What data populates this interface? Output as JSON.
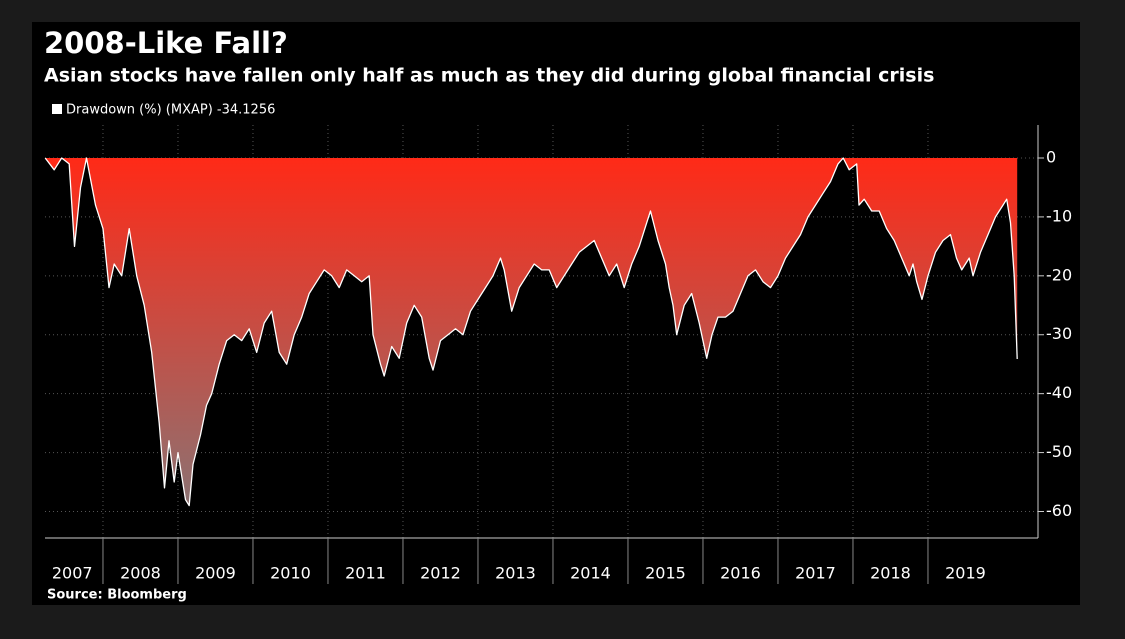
{
  "chart_data": {
    "type": "area",
    "title": "2008-Like Fall?",
    "subtitle": "Asian stocks have fallen only half as much as they did during global financial crisis",
    "source": "Source: Bloomberg",
    "series": [
      {
        "name": "Drawdown (%) (MXAP) -34.1256",
        "color": "#ffffff",
        "fill_gradient": [
          "#ff2a17",
          "#8c7272"
        ],
        "x": [
          2007.23,
          2007.35,
          2007.45,
          2007.55,
          2007.62,
          2007.7,
          2007.78,
          2007.9,
          2008.0,
          2008.08,
          2008.15,
          2008.25,
          2008.35,
          2008.45,
          2008.55,
          2008.65,
          2008.75,
          2008.82,
          2008.88,
          2008.95,
          2009.0,
          2009.1,
          2009.15,
          2009.2,
          2009.3,
          2009.38,
          2009.45,
          2009.55,
          2009.65,
          2009.75,
          2009.85,
          2009.95,
          2010.05,
          2010.15,
          2010.25,
          2010.35,
          2010.45,
          2010.55,
          2010.65,
          2010.75,
          2010.85,
          2010.95,
          2011.05,
          2011.15,
          2011.25,
          2011.35,
          2011.45,
          2011.55,
          2011.6,
          2011.7,
          2011.75,
          2011.85,
          2011.95,
          2012.05,
          2012.15,
          2012.25,
          2012.35,
          2012.4,
          2012.5,
          2012.6,
          2012.7,
          2012.8,
          2012.9,
          2013.0,
          2013.1,
          2013.2,
          2013.3,
          2013.35,
          2013.45,
          2013.55,
          2013.65,
          2013.75,
          2013.85,
          2013.95,
          2014.05,
          2014.15,
          2014.25,
          2014.35,
          2014.45,
          2014.55,
          2014.65,
          2014.75,
          2014.85,
          2014.95,
          2015.05,
          2015.15,
          2015.25,
          2015.3,
          2015.4,
          2015.5,
          2015.55,
          2015.6,
          2015.65,
          2015.75,
          2015.85,
          2015.95,
          2016.05,
          2016.12,
          2016.2,
          2016.3,
          2016.4,
          2016.5,
          2016.6,
          2016.7,
          2016.8,
          2016.9,
          2017.0,
          2017.1,
          2017.2,
          2017.3,
          2017.4,
          2017.5,
          2017.6,
          2017.7,
          2017.8,
          2017.87,
          2017.95,
          2018.05,
          2018.08,
          2018.15,
          2018.25,
          2018.35,
          2018.45,
          2018.55,
          2018.65,
          2018.75,
          2018.8,
          2018.85,
          2018.92,
          2019.0,
          2019.1,
          2019.2,
          2019.3,
          2019.38,
          2019.45,
          2019.55,
          2019.6,
          2019.7,
          2019.8,
          2019.9,
          2020.0,
          2020.05,
          2020.1,
          2020.15,
          2020.19
        ],
        "values": [
          0,
          -2,
          0,
          -1,
          -15,
          -5,
          0,
          -8,
          -12,
          -22,
          -18,
          -20,
          -12,
          -20,
          -25,
          -33,
          -45,
          -56,
          -48,
          -55,
          -50,
          -58,
          -59,
          -52,
          -47,
          -42,
          -40,
          -35,
          -31,
          -30,
          -31,
          -29,
          -33,
          -28,
          -26,
          -33,
          -35,
          -30,
          -27,
          -23,
          -21,
          -19,
          -20,
          -22,
          -19,
          -20,
          -21,
          -20,
          -30,
          -35,
          -37,
          -32,
          -34,
          -28,
          -25,
          -27,
          -34,
          -36,
          -31,
          -30,
          -29,
          -30,
          -26,
          -24,
          -22,
          -20,
          -17,
          -19,
          -26,
          -22,
          -20,
          -18,
          -19,
          -19,
          -22,
          -20,
          -18,
          -16,
          -15,
          -14,
          -17,
          -20,
          -18,
          -22,
          -18,
          -15,
          -11,
          -9,
          -14,
          -18,
          -22,
          -25,
          -30,
          -25,
          -23,
          -28,
          -34,
          -30,
          -27,
          -27,
          -26,
          -23,
          -20,
          -19,
          -21,
          -22,
          -20,
          -17,
          -15,
          -13,
          -10,
          -8,
          -6,
          -4,
          -1,
          0,
          -2,
          -1,
          -8,
          -7,
          -9,
          -9,
          -12,
          -14,
          -17,
          -20,
          -18,
          -21,
          -24,
          -20,
          -16,
          -14,
          -13,
          -17,
          -19,
          -17,
          -20,
          -16,
          -13,
          -10,
          -8,
          -7,
          -11,
          -20,
          -34.1256
        ]
      }
    ],
    "xlim": [
      2007.227,
      2020.467
    ],
    "xticks": [
      {
        "value": 2007.59,
        "label": "2007"
      },
      {
        "value": 2008.5,
        "label": "2008"
      },
      {
        "value": 2009.5,
        "label": "2009"
      },
      {
        "value": 2010.5,
        "label": "2010"
      },
      {
        "value": 2011.5,
        "label": "2011"
      },
      {
        "value": 2012.5,
        "label": "2012"
      },
      {
        "value": 2013.5,
        "label": "2013"
      },
      {
        "value": 2014.5,
        "label": "2014"
      },
      {
        "value": 2015.5,
        "label": "2015"
      },
      {
        "value": 2016.5,
        "label": "2016"
      },
      {
        "value": 2017.5,
        "label": "2017"
      },
      {
        "value": 2018.5,
        "label": "2018"
      },
      {
        "value": 2019.5,
        "label": "2019"
      }
    ],
    "xgrid": [
      2008,
      2009,
      2010,
      2011,
      2012,
      2013,
      2014,
      2015,
      2016,
      2017,
      2018,
      2019
    ],
    "ylim": [
      -64.5,
      5.6
    ],
    "yticks": [
      0,
      -10,
      -20,
      -30,
      -40,
      -50,
      -60
    ],
    "grid": true
  }
}
